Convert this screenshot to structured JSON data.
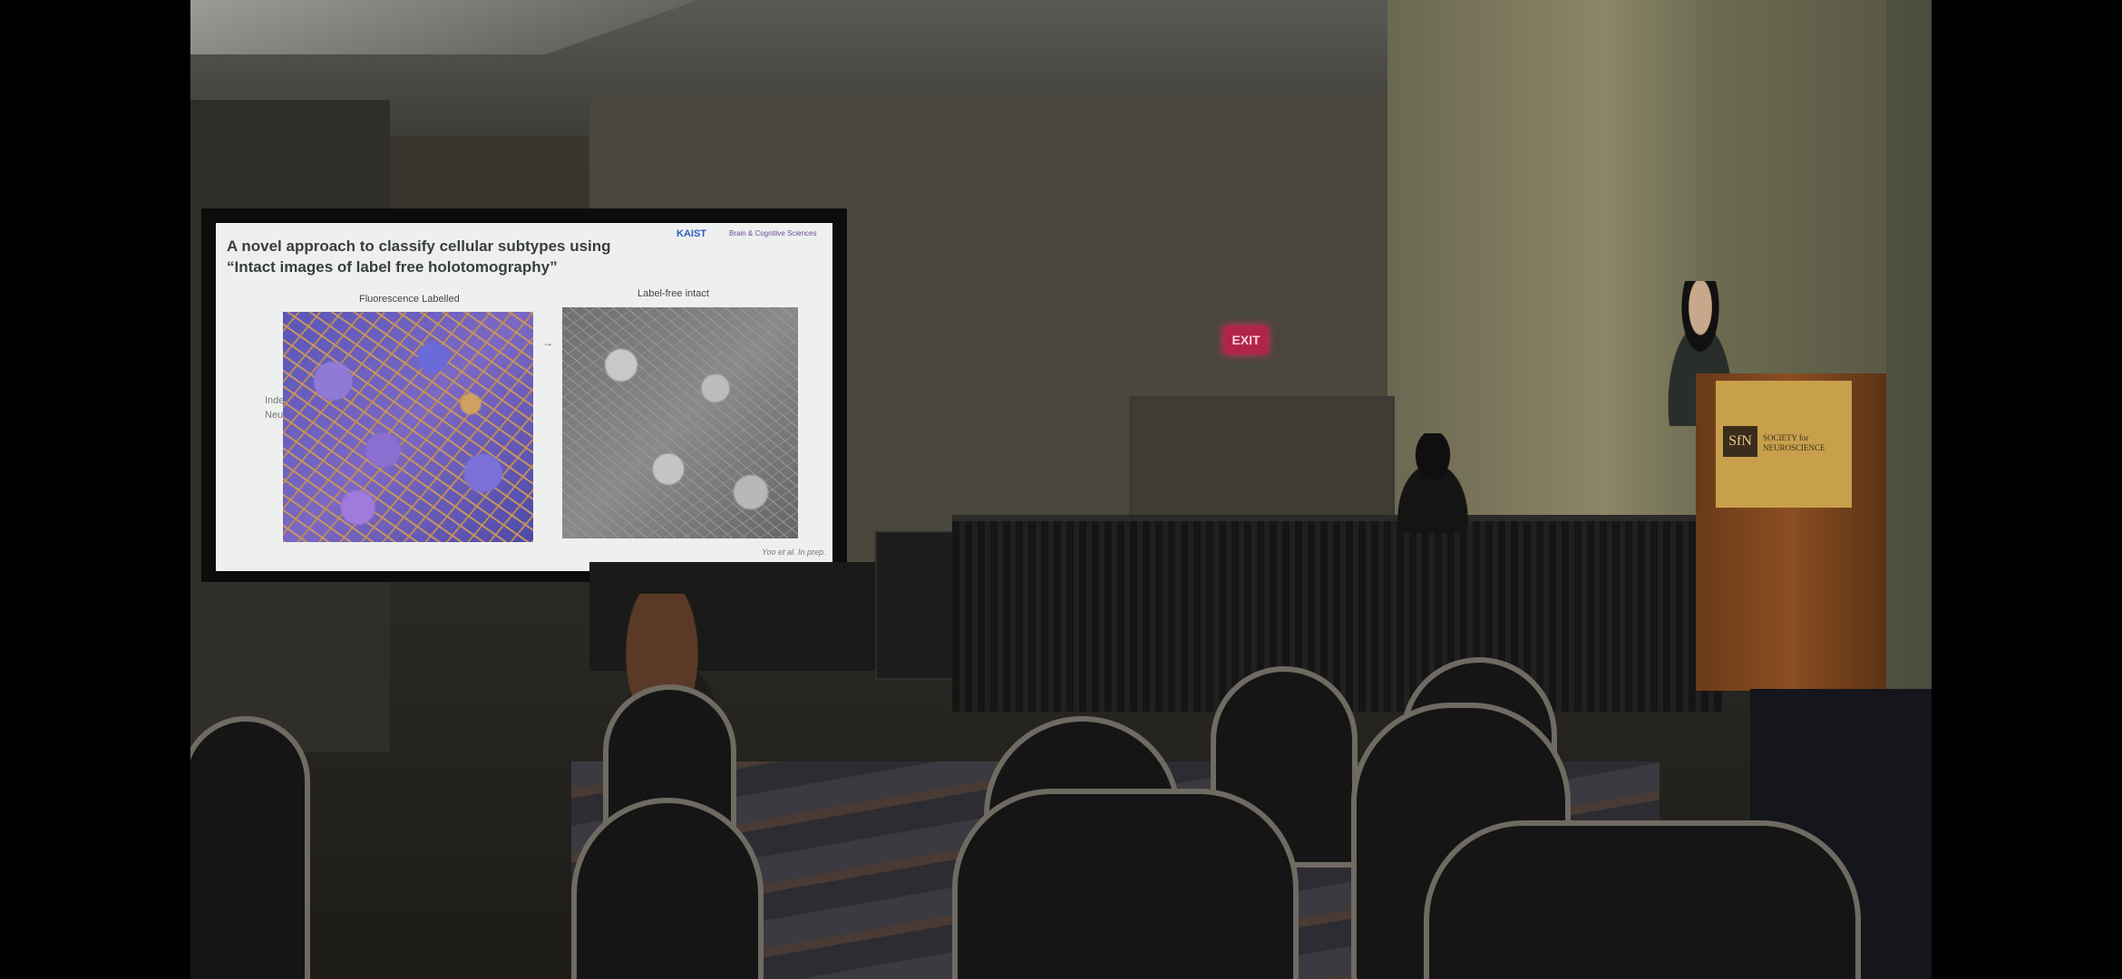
{
  "slide": {
    "title": "A novel approach to classify cellular subtypes using “Intact images of label free holotomography”",
    "logo_kaist": "KAIST",
    "logo_brain": "Brain & Cognitive Sciences",
    "caption_left": "Fluorescence Labelled",
    "caption_right": "Label-free intact",
    "side_text_1": "Inde",
    "side_text_2": "Neu",
    "citation": "Yoo et al. In prep."
  },
  "exit_sign": "EXIT",
  "podium": {
    "logo": "SfN",
    "line1": "SOCIETY for",
    "line2": "NEUROSCIENCE"
  },
  "colors": {
    "slide_bg": "#eef0ef",
    "exit_red": "#b0244a",
    "podium_wood": "#8a4e22",
    "podium_plate": "#c8a04c"
  }
}
